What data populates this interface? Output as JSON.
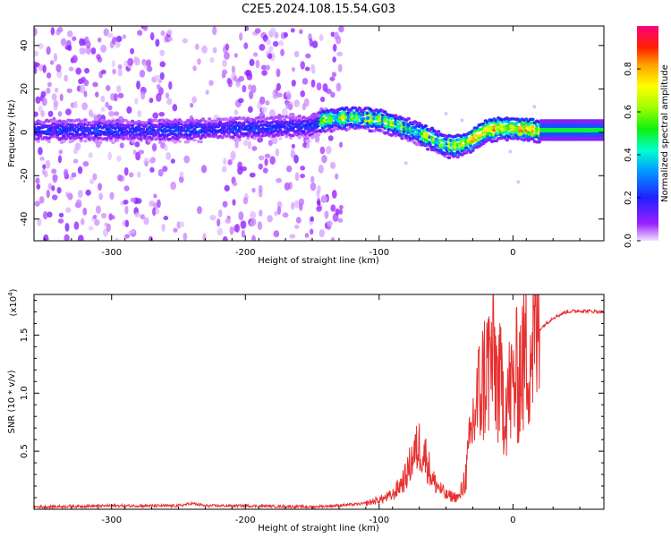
{
  "title": "C2E5.2024.108.15.54.G03",
  "chart_data": [
    {
      "type": "heatmap",
      "xlabel": "Height of straight line (km)",
      "ylabel": "Frequency (Hz)",
      "xlim": [
        -358,
        68
      ],
      "ylim": [
        -50,
        49
      ],
      "x_ticks": [
        -300,
        -200,
        -100,
        0
      ],
      "x_tick_labels": [
        "-300",
        "-200",
        "-100",
        "0"
      ],
      "y_ticks": [
        -40,
        -20,
        0,
        20,
        40
      ],
      "y_tick_labels": [
        "-40",
        "-20",
        "0",
        "20",
        "40"
      ],
      "colorbar": {
        "label": "Normalized spectral amplitude",
        "range": [
          0,
          1
        ],
        "ticks": [
          0.0,
          0.2,
          0.4,
          0.6,
          0.8
        ],
        "tick_labels": [
          "0.0",
          "0.2",
          "0.4",
          "0.6",
          "0.8"
        ]
      },
      "ridge": {
        "x": [
          -358,
          -300,
          -250,
          -200,
          -150,
          -140,
          -120,
          -100,
          -80,
          -60,
          -50,
          -40,
          -30,
          -20,
          -10,
          0,
          20,
          68
        ],
        "y": [
          1,
          1,
          1,
          2,
          3,
          6,
          7,
          6,
          2,
          -3,
          -6,
          -6,
          -3,
          1,
          2,
          2,
          1,
          1
        ]
      },
      "grid": false
    },
    {
      "type": "line",
      "xlabel": "Height of straight line (km)",
      "ylabel": "SNR (10 * v/v)",
      "y_scale_label": "(x10",
      "y_scale_exp": "4",
      "y_scale_close": ")",
      "xlim": [
        -358,
        68
      ],
      "ylim": [
        0,
        1.85
      ],
      "x_ticks": [
        -300,
        -200,
        -100,
        0
      ],
      "x_tick_labels": [
        "-300",
        "-200",
        "-100",
        "0"
      ],
      "y_ticks": [
        0.5,
        1.0,
        1.5
      ],
      "y_tick_labels": [
        "0.5",
        "1.0",
        "1.5"
      ],
      "series": [
        {
          "color": "#e83030",
          "x": [
            -358,
            -300,
            -250,
            -240,
            -230,
            -200,
            -150,
            -120,
            -110,
            -100,
            -90,
            -80,
            -75,
            -70,
            -65,
            -60,
            -50,
            -40,
            -35,
            -30,
            -25,
            -20,
            -15,
            -10,
            -5,
            0,
            10,
            20,
            30,
            40,
            50,
            68
          ],
          "y": [
            0.02,
            0.03,
            0.03,
            0.05,
            0.03,
            0.03,
            0.02,
            0.04,
            0.05,
            0.08,
            0.12,
            0.28,
            0.45,
            0.55,
            0.45,
            0.25,
            0.12,
            0.1,
            0.3,
            0.75,
            1.0,
            1.2,
            1.3,
            1.05,
            0.95,
            1.05,
            1.35,
            1.55,
            1.65,
            1.7,
            1.71,
            1.7
          ]
        }
      ],
      "grid": false
    }
  ]
}
